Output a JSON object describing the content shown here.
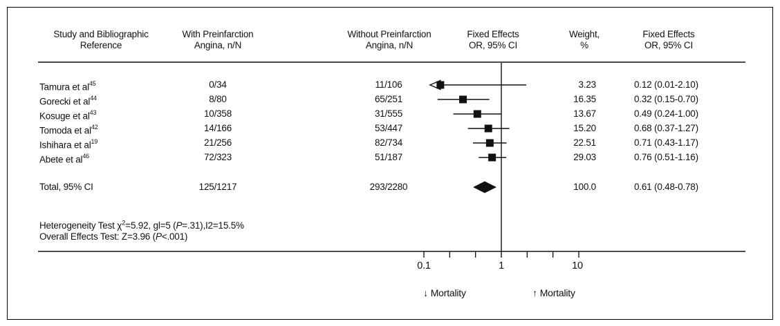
{
  "chart_data": {
    "type": "forest",
    "scale": "log",
    "no_effect_value": 1,
    "columns": [
      {
        "line1": "Study and Bibliographic",
        "line2": "Reference"
      },
      {
        "line1": "With Preinfarction",
        "line2": "Angina, n/N"
      },
      {
        "line1": "Without Preinfarction",
        "line2": "Angina, n/N"
      },
      {
        "line1": "Fixed Effects",
        "line2": "OR, 95% CI"
      },
      {
        "line1": "Weight,",
        "line2": "%"
      },
      {
        "line1": "Fixed Effects",
        "line2": "OR, 95% CI"
      }
    ],
    "studies": [
      {
        "label": "Tamura et al",
        "ref": "45",
        "with_npn": "0/34",
        "without_npn": "11/106",
        "or": 0.12,
        "ci_low": 0.01,
        "ci_high": 2.1,
        "weight": "3.23",
        "or_text": "0.12 (0.01-2.10)",
        "arrow_left": true
      },
      {
        "label": "Gorecki et al",
        "ref": "44",
        "with_npn": "8/80",
        "without_npn": "65/251",
        "or": 0.32,
        "ci_low": 0.15,
        "ci_high": 0.7,
        "weight": "16.35",
        "or_text": "0.32 (0.15-0.70)"
      },
      {
        "label": "Kosuge et al",
        "ref": "43",
        "with_npn": "10/358",
        "without_npn": "31/555",
        "or": 0.49,
        "ci_low": 0.24,
        "ci_high": 1.0,
        "weight": "13.67",
        "or_text": "0.49 (0.24-1.00)"
      },
      {
        "label": "Tomoda et al",
        "ref": "42",
        "with_npn": "14/166",
        "without_npn": "53/447",
        "or": 0.68,
        "ci_low": 0.37,
        "ci_high": 1.27,
        "weight": "15.20",
        "or_text": "0.68 (0.37-1.27)"
      },
      {
        "label": "Ishihara et al",
        "ref": "19",
        "with_npn": "21/256",
        "without_npn": "82/734",
        "or": 0.71,
        "ci_low": 0.43,
        "ci_high": 1.17,
        "weight": "22.51",
        "or_text": "0.71 (0.43-1.17)"
      },
      {
        "label": "Abete et al",
        "ref": "46",
        "with_npn": "72/323",
        "without_npn": "51/187",
        "or": 0.76,
        "ci_low": 0.51,
        "ci_high": 1.16,
        "weight": "29.03",
        "or_text": "0.76 (0.51-1.16)"
      }
    ],
    "total": {
      "label": "Total, 95% CI",
      "with_npn": "125/1217",
      "without_npn": "293/2280",
      "or": 0.61,
      "ci_low": 0.48,
      "ci_high": 0.78,
      "weight": "100.0",
      "or_text": "0.61 (0.48-0.78)"
    },
    "axis": {
      "xlim": [
        0.1,
        10
      ],
      "tick_values": [
        0.1,
        1,
        10
      ],
      "tick_labels": [
        "0.1",
        "1",
        "10"
      ],
      "minor_ticks_between_majors": 2
    },
    "direction_labels": {
      "left": "↓ Mortality",
      "right": "↑ Mortality"
    },
    "footnotes": {
      "heterogeneity_parts": [
        {
          "t": "Heterogeneity Test "
        },
        {
          "t": "χ"
        },
        {
          "t": "2",
          "s": "sup"
        },
        {
          "t": "=5.92, gl=5 ("
        },
        {
          "t": "P",
          "s": "i"
        },
        {
          "t": "=.31),I2=15.5%"
        }
      ],
      "overall_parts": [
        {
          "t": "Overall Effects Test: Z=3.96 ("
        },
        {
          "t": "P",
          "s": "i"
        },
        {
          "t": "<.001)"
        }
      ]
    },
    "ink_color": "#111111",
    "background_color": "#ffffff"
  }
}
